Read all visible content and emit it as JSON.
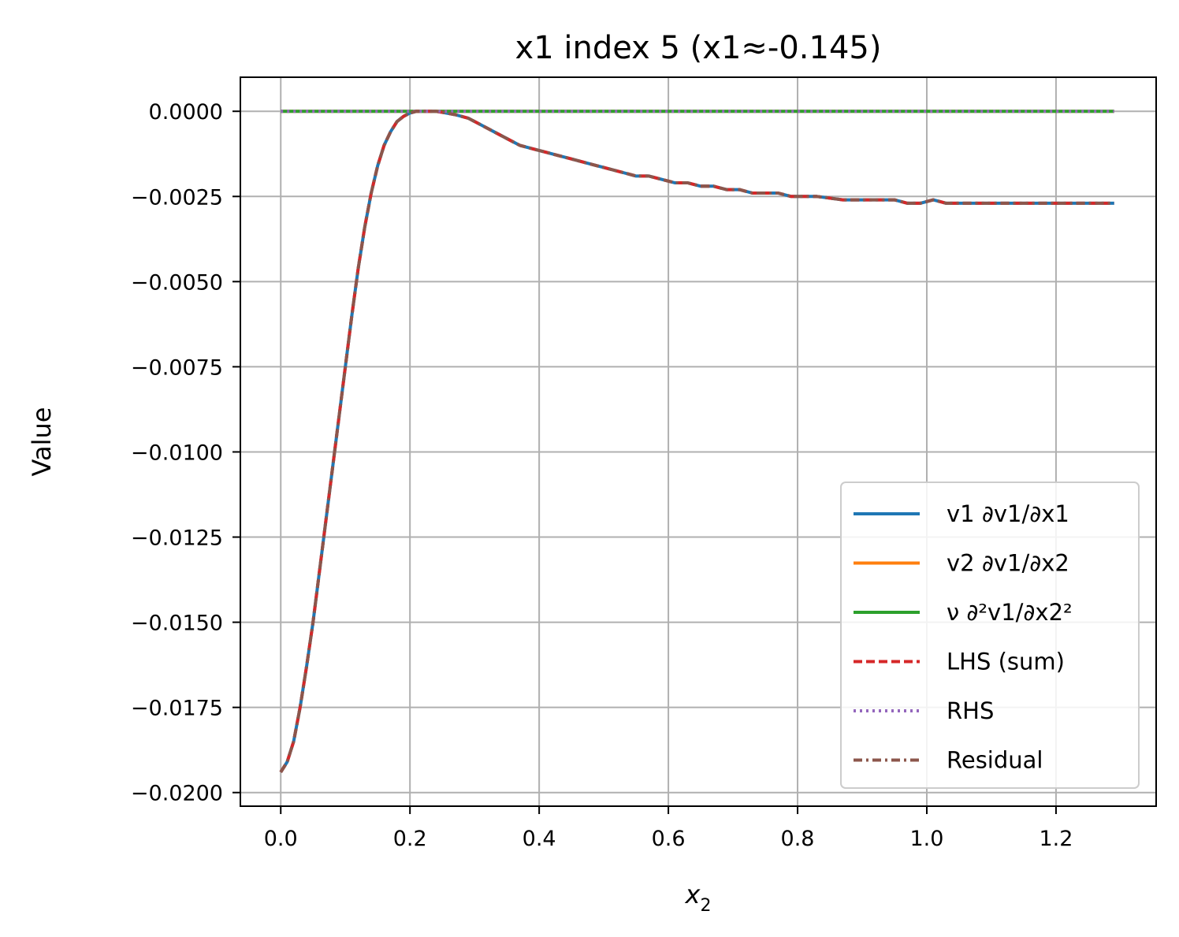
{
  "chart_data": {
    "type": "line",
    "title": "x1 index 5 (x1≈-0.145)",
    "xlabel_base": "x",
    "xlabel_sub": "2",
    "ylabel": "Value",
    "xlim": [
      -0.0625,
      1.355
    ],
    "ylim": [
      -0.0204,
      0.001
    ],
    "xticks": [
      0.0,
      0.2,
      0.4,
      0.6,
      0.8,
      1.0,
      1.2
    ],
    "xtick_labels": [
      "0.0",
      "0.2",
      "0.4",
      "0.6",
      "0.8",
      "1.0",
      "1.2"
    ],
    "yticks": [
      0.0,
      -0.0025,
      -0.005,
      -0.0075,
      -0.01,
      -0.0125,
      -0.015,
      -0.0175,
      -0.02
    ],
    "ytick_labels": [
      "0.0000",
      "−0.0025",
      "−0.0050",
      "−0.0075",
      "−0.0100",
      "−0.0125",
      "−0.0150",
      "−0.0175",
      "−0.0200"
    ],
    "grid": true,
    "legend_position": "lower-right",
    "x": [
      0.0,
      0.01,
      0.02,
      0.03,
      0.04,
      0.05,
      0.06,
      0.07,
      0.08,
      0.09,
      0.1,
      0.11,
      0.12,
      0.13,
      0.14,
      0.15,
      0.16,
      0.17,
      0.18,
      0.19,
      0.2,
      0.21,
      0.22,
      0.23,
      0.24,
      0.25,
      0.27,
      0.29,
      0.31,
      0.33,
      0.35,
      0.37,
      0.39,
      0.41,
      0.43,
      0.45,
      0.47,
      0.49,
      0.51,
      0.53,
      0.55,
      0.57,
      0.59,
      0.61,
      0.63,
      0.65,
      0.67,
      0.69,
      0.71,
      0.73,
      0.75,
      0.77,
      0.79,
      0.81,
      0.83,
      0.85,
      0.87,
      0.89,
      0.91,
      0.93,
      0.95,
      0.97,
      0.99,
      1.01,
      1.03,
      1.05,
      1.07,
      1.09,
      1.11,
      1.13,
      1.15,
      1.17,
      1.19,
      1.21,
      1.23,
      1.25,
      1.27,
      1.29
    ],
    "series": [
      {
        "name": "v1 ∂v1/∂x1",
        "color": "#1f77b4",
        "style": "solid",
        "values": [
          -0.0194,
          -0.0191,
          -0.0185,
          -0.0175,
          -0.0163,
          -0.015,
          -0.0135,
          -0.012,
          -0.0105,
          -0.009,
          -0.0075,
          -0.006,
          -0.0046,
          -0.0034,
          -0.0024,
          -0.0016,
          -0.001,
          -0.0006,
          -0.0003,
          -0.00015,
          -5e-05,
          0.0,
          0.0,
          0.0,
          0.0,
          -3e-05,
          -0.0001,
          -0.0002,
          -0.0004,
          -0.0006,
          -0.0008,
          -0.001,
          -0.0011,
          -0.0012,
          -0.0013,
          -0.0014,
          -0.0015,
          -0.0016,
          -0.0017,
          -0.0018,
          -0.0019,
          -0.0019,
          -0.002,
          -0.0021,
          -0.0021,
          -0.0022,
          -0.0022,
          -0.0023,
          -0.0023,
          -0.0024,
          -0.0024,
          -0.0024,
          -0.0025,
          -0.0025,
          -0.0025,
          -0.00255,
          -0.0026,
          -0.0026,
          -0.0026,
          -0.0026,
          -0.0026,
          -0.0027,
          -0.0027,
          -0.0026,
          -0.0027,
          -0.0027,
          -0.0027,
          -0.0027,
          -0.0027,
          -0.0027,
          -0.0027,
          -0.0027,
          -0.0027,
          -0.0027,
          -0.0027,
          -0.0027,
          -0.0027,
          -0.0027
        ]
      },
      {
        "name": "v2 ∂v1/∂x2",
        "color": "#ff7f0e",
        "style": "solid",
        "constant": 0.0
      },
      {
        "name": "ν ∂²v1/∂x2²",
        "color": "#2ca02c",
        "style": "solid",
        "constant": 0.0
      },
      {
        "name": "LHS (sum)",
        "color": "#d62728",
        "style": "dashed",
        "same_as": 0
      },
      {
        "name": "RHS",
        "color": "#9467bd",
        "style": "dotted",
        "constant": 0.0
      },
      {
        "name": "Residual",
        "color": "#8c564b",
        "style": "dashdot",
        "same_as": 0
      }
    ]
  }
}
